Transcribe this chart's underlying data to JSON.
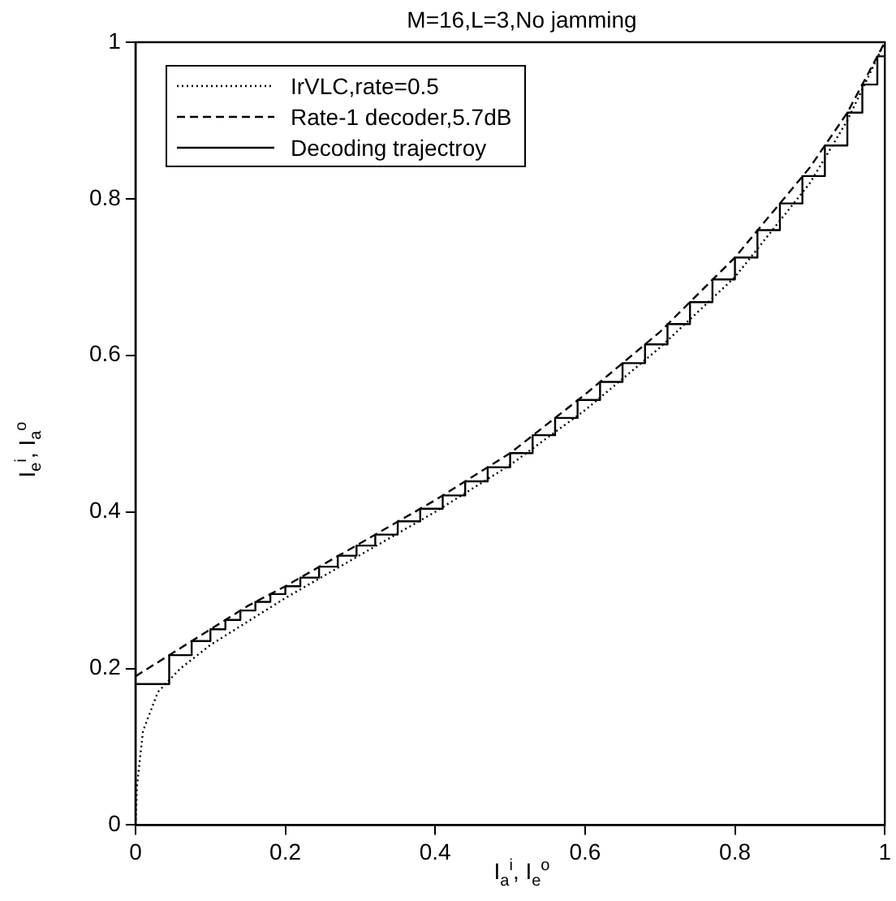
{
  "chart_data": {
    "type": "line",
    "title": "M=16,L=3,No jamming",
    "xlabel": "I$_{a}$$^{i}$, I$_{e}$$^{o}$",
    "ylabel": "I$_{e}$$^{i}$, I$_{a}$$^{o}$",
    "xlim": [
      0,
      1
    ],
    "ylim": [
      0,
      1
    ],
    "xticks": [
      0,
      0.2,
      0.4,
      0.6,
      0.8,
      1
    ],
    "yticks": [
      0,
      0.2,
      0.4,
      0.6,
      0.8,
      1
    ],
    "grid": false,
    "legend": "top left",
    "marker": "none",
    "series": [
      {
        "name": "IrVLC,rate=0.5",
        "color": "#000000",
        "line_style": "dotted",
        "x": [
          0,
          0.002,
          0.01,
          0.03,
          0.06,
          0.1,
          0.2,
          0.3,
          0.4,
          0.5,
          0.6,
          0.7,
          0.8,
          0.9,
          0.95,
          1
        ],
        "values": [
          0,
          0.05,
          0.12,
          0.17,
          0.2,
          0.23,
          0.29,
          0.345,
          0.4,
          0.46,
          0.53,
          0.61,
          0.7,
          0.82,
          0.9,
          1
        ]
      },
      {
        "name": "Rate-1 decoder,5.7dB",
        "color": "#000000",
        "line_style": "dashed",
        "x": [
          0,
          0.05,
          0.1,
          0.15,
          0.2,
          0.3,
          0.4,
          0.5,
          0.6,
          0.7,
          0.8,
          0.9,
          0.95,
          1
        ],
        "values": [
          0.19,
          0.22,
          0.25,
          0.28,
          0.305,
          0.36,
          0.415,
          0.475,
          0.55,
          0.63,
          0.725,
          0.84,
          0.91,
          1
        ]
      },
      {
        "name": "Decoding trajectroy",
        "type": "step",
        "color": "#000000",
        "line_style": "solid",
        "x": [
          0,
          0.045,
          0.075,
          0.1,
          0.12,
          0.14,
          0.16,
          0.18,
          0.2,
          0.22,
          0.245,
          0.27,
          0.295,
          0.32,
          0.35,
          0.38,
          0.41,
          0.44,
          0.47,
          0.5,
          0.53,
          0.56,
          0.59,
          0.62,
          0.65,
          0.68,
          0.71,
          0.74,
          0.77,
          0.8,
          0.83,
          0.86,
          0.89,
          0.92,
          0.95,
          0.97,
          0.99,
          1
        ],
        "values": [
          0.18,
          0.217,
          0.235,
          0.25,
          0.262,
          0.274,
          0.285,
          0.295,
          0.305,
          0.316,
          0.33,
          0.344,
          0.357,
          0.371,
          0.388,
          0.404,
          0.421,
          0.439,
          0.457,
          0.475,
          0.498,
          0.52,
          0.543,
          0.566,
          0.59,
          0.614,
          0.64,
          0.668,
          0.697,
          0.725,
          0.76,
          0.794,
          0.829,
          0.868,
          0.91,
          0.946,
          0.982,
          1
        ]
      }
    ]
  }
}
